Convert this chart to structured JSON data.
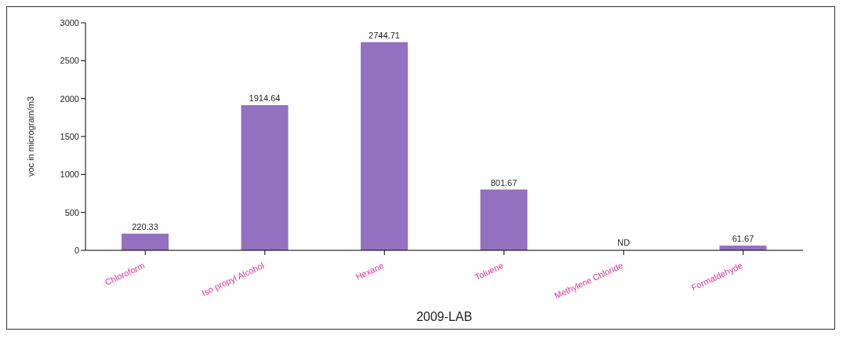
{
  "chart_data": {
    "type": "bar",
    "xlabel": "2009-LAB",
    "ylabel": "voc in microgram/m3",
    "categories": [
      "Chloroform",
      "Iso propyl Alcohol",
      "Hexane",
      "Toluene",
      "Methylene Chloride",
      "Formaldehyde"
    ],
    "values": [
      220.33,
      1914.64,
      2744.71,
      801.67,
      null,
      61.67
    ],
    "value_labels": [
      "220.33",
      "1914.64",
      "2744.71",
      "801.67",
      "ND",
      "61.67"
    ],
    "color": "#9370c0",
    "ylim": [
      0,
      3000
    ],
    "yticks": [
      0,
      500,
      1000,
      1500,
      2000,
      2500,
      3000
    ],
    "grid": false,
    "legend": false
  }
}
